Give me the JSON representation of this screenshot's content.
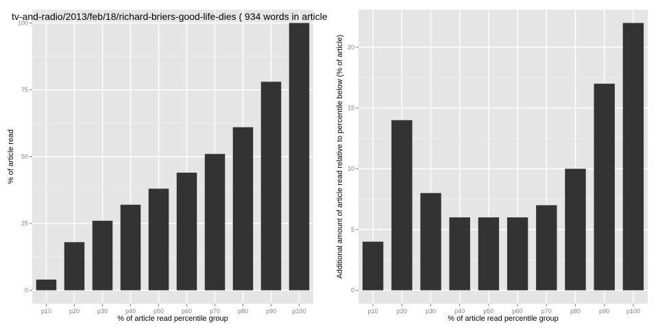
{
  "chart_data": [
    {
      "type": "bar",
      "title": "tv-and-radio/2013/feb/18/richard-briers-good-life-dies ( 934 words in article )",
      "xlabel": "% of article read percentile group",
      "ylabel": "% of article read",
      "categories": [
        "p10",
        "p20",
        "p30",
        "p40",
        "p50",
        "p60",
        "p70",
        "p80",
        "p90",
        "p100"
      ],
      "values": [
        4,
        18,
        26,
        32,
        38,
        44,
        51,
        61,
        78,
        100
      ],
      "ylim": [
        -5,
        105
      ],
      "yticks": [
        0,
        25,
        50,
        75,
        100
      ],
      "grid": true,
      "bar_color": "#333333",
      "panel_color": "#e5e5e5",
      "grid_color": "#ffffff"
    },
    {
      "type": "bar",
      "title": "",
      "xlabel": "% of article read percentile group",
      "ylabel": "Additional amount of article read relative to percentile below (% of article)",
      "categories": [
        "p10",
        "p20",
        "p30",
        "p40",
        "p50",
        "p60",
        "p70",
        "p80",
        "p90",
        "p100"
      ],
      "values": [
        4,
        14,
        8,
        6,
        6,
        6,
        7,
        10,
        17,
        22
      ],
      "ylim": [
        -1.1,
        23.1
      ],
      "yticks": [
        0,
        5,
        10,
        15,
        20
      ],
      "grid": true,
      "bar_color": "#333333",
      "panel_color": "#e5e5e5",
      "grid_color": "#ffffff"
    }
  ]
}
